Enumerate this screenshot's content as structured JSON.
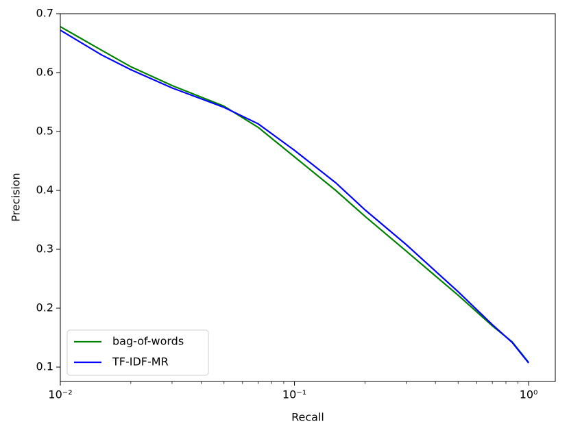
{
  "chart_data": {
    "type": "line",
    "xlabel": "Recall",
    "ylabel": "Precision",
    "x": [
      0.01,
      0.015,
      0.02,
      0.03,
      0.05,
      0.07,
      0.1,
      0.15,
      0.2,
      0.3,
      0.5,
      0.7,
      0.85,
      1.0
    ],
    "series": [
      {
        "name": "bag-of-words",
        "color": "#008000",
        "values": [
          0.678,
          0.638,
          0.61,
          0.578,
          0.543,
          0.507,
          0.457,
          0.4,
          0.356,
          0.297,
          0.222,
          0.17,
          0.143,
          0.108
        ]
      },
      {
        "name": "TF-IDF-MR",
        "color": "#0000ff",
        "values": [
          0.672,
          0.63,
          0.605,
          0.574,
          0.541,
          0.513,
          0.468,
          0.413,
          0.367,
          0.308,
          0.228,
          0.172,
          0.142,
          0.107
        ]
      }
    ],
    "xscale": "log",
    "xlim": [
      0.01,
      1.3
    ],
    "xticks": [
      {
        "value": 0.01,
        "label": "10⁻²"
      },
      {
        "value": 0.1,
        "label": "10⁻¹"
      },
      {
        "value": 1,
        "label": "10⁰"
      }
    ],
    "xminorticks": [
      0.02,
      0.03,
      0.04,
      0.05,
      0.06,
      0.07,
      0.08,
      0.09,
      0.2,
      0.3,
      0.4,
      0.5,
      0.6,
      0.7,
      0.8,
      0.9
    ],
    "ylim": [
      0.0756,
      0.7
    ],
    "yticks": [
      0.1,
      0.2,
      0.3,
      0.4,
      0.5,
      0.6,
      0.7
    ],
    "grid": false,
    "legend": "lower left"
  }
}
